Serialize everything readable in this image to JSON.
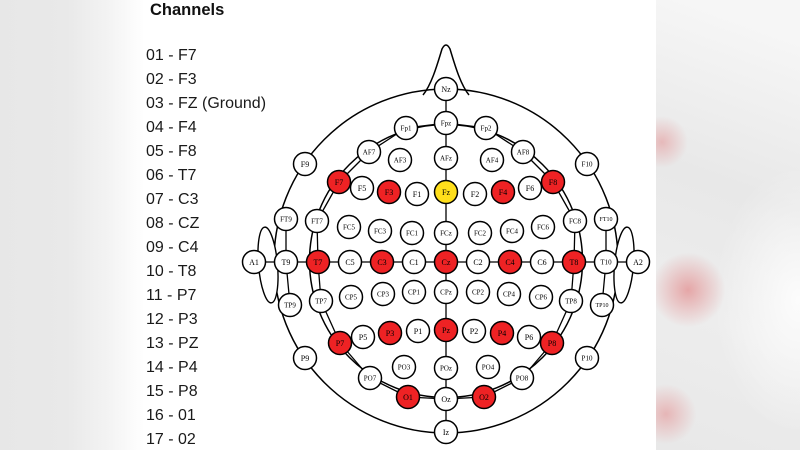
{
  "channels": {
    "title": "Channels",
    "items": [
      "01 - F7",
      "02 - F3",
      "03 - FZ (Ground)",
      "04 - F4",
      "05 - F8",
      "06 - T7",
      "07 - C3",
      "08 - CZ",
      "09 - C4",
      "10 - T8",
      "11 - P7",
      "12 - P3",
      "13 - PZ",
      "14 - P4",
      "15 - P8",
      "16 - 01",
      "17 - 02"
    ]
  },
  "diagram": {
    "colors": {
      "normal": "#ffffff",
      "selected": "#ee2224",
      "ground": "#ffdf1b",
      "outline": "#000000"
    },
    "electrode_format": [
      "id",
      "x",
      "y",
      "state"
    ],
    "electrodes": [
      [
        "Nz",
        446,
        89,
        "normal"
      ],
      [
        "Fp1",
        406,
        128,
        "normal"
      ],
      [
        "Fpz",
        446,
        123,
        "normal"
      ],
      [
        "Fp2",
        486,
        128,
        "normal"
      ],
      [
        "AF7",
        369,
        152,
        "normal"
      ],
      [
        "AF3",
        400,
        160,
        "normal"
      ],
      [
        "AFz",
        446,
        158,
        "normal"
      ],
      [
        "AF4",
        492,
        160,
        "normal"
      ],
      [
        "AF8",
        523,
        152,
        "normal"
      ],
      [
        "F9",
        305,
        164,
        "normal"
      ],
      [
        "F7",
        339,
        182,
        "selected"
      ],
      [
        "F5",
        362,
        188,
        "normal"
      ],
      [
        "F3",
        389,
        192,
        "selected"
      ],
      [
        "F1",
        417,
        194,
        "normal"
      ],
      [
        "Fz",
        446,
        192,
        "ground"
      ],
      [
        "F2",
        475,
        194,
        "normal"
      ],
      [
        "F4",
        503,
        192,
        "selected"
      ],
      [
        "F6",
        530,
        188,
        "normal"
      ],
      [
        "F8",
        553,
        182,
        "selected"
      ],
      [
        "F10",
        587,
        164,
        "normal"
      ],
      [
        "FT9",
        286,
        219,
        "normal"
      ],
      [
        "FT7",
        317,
        221,
        "normal"
      ],
      [
        "FC5",
        349,
        227,
        "normal"
      ],
      [
        "FC3",
        380,
        231,
        "normal"
      ],
      [
        "FC1",
        412,
        233,
        "normal"
      ],
      [
        "FCz",
        446,
        233,
        "normal"
      ],
      [
        "FC2",
        480,
        233,
        "normal"
      ],
      [
        "FC4",
        512,
        231,
        "normal"
      ],
      [
        "FC6",
        543,
        227,
        "normal"
      ],
      [
        "FC8",
        575,
        221,
        "normal"
      ],
      [
        "FT10",
        606,
        219,
        "normal"
      ],
      [
        "A1",
        254,
        262,
        "normal"
      ],
      [
        "T9",
        286,
        262,
        "normal"
      ],
      [
        "T7",
        318,
        262,
        "selected"
      ],
      [
        "C5",
        350,
        262,
        "normal"
      ],
      [
        "C3",
        382,
        262,
        "selected"
      ],
      [
        "C1",
        414,
        262,
        "normal"
      ],
      [
        "Cz",
        446,
        262,
        "selected"
      ],
      [
        "C2",
        478,
        262,
        "normal"
      ],
      [
        "C4",
        510,
        262,
        "selected"
      ],
      [
        "C6",
        542,
        262,
        "normal"
      ],
      [
        "T8",
        574,
        262,
        "selected"
      ],
      [
        "T10",
        606,
        262,
        "normal"
      ],
      [
        "A2",
        638,
        262,
        "normal"
      ],
      [
        "TP9",
        290,
        305,
        "normal"
      ],
      [
        "TP7",
        321,
        301,
        "normal"
      ],
      [
        "CP5",
        351,
        297,
        "normal"
      ],
      [
        "CP3",
        383,
        294,
        "normal"
      ],
      [
        "CP1",
        414,
        292,
        "normal"
      ],
      [
        "CPz",
        446,
        292,
        "normal"
      ],
      [
        "CP2",
        478,
        292,
        "normal"
      ],
      [
        "CP4",
        509,
        294,
        "normal"
      ],
      [
        "CP6",
        541,
        297,
        "normal"
      ],
      [
        "TP8",
        571,
        301,
        "normal"
      ],
      [
        "TP10",
        602,
        305,
        "normal"
      ],
      [
        "P9",
        305,
        358,
        "normal"
      ],
      [
        "P7",
        340,
        343,
        "selected"
      ],
      [
        "P5",
        363,
        337,
        "normal"
      ],
      [
        "P3",
        390,
        333,
        "selected"
      ],
      [
        "P1",
        418,
        331,
        "normal"
      ],
      [
        "Pz",
        446,
        330,
        "selected"
      ],
      [
        "P2",
        474,
        331,
        "normal"
      ],
      [
        "P4",
        502,
        333,
        "selected"
      ],
      [
        "P6",
        529,
        337,
        "normal"
      ],
      [
        "P8",
        552,
        343,
        "selected"
      ],
      [
        "P10",
        587,
        358,
        "normal"
      ],
      [
        "PO7",
        370,
        378,
        "normal"
      ],
      [
        "PO3",
        404,
        367,
        "normal"
      ],
      [
        "POz",
        446,
        368,
        "normal"
      ],
      [
        "PO4",
        488,
        367,
        "normal"
      ],
      [
        "PO8",
        522,
        378,
        "normal"
      ],
      [
        "O1",
        408,
        397,
        "selected"
      ],
      [
        "Oz",
        446,
        399,
        "normal"
      ],
      [
        "O2",
        484,
        397,
        "selected"
      ],
      [
        "Iz",
        446,
        432,
        "normal"
      ]
    ],
    "connections": [
      [
        "Nz",
        "Fpz"
      ],
      [
        "Fpz",
        "AFz"
      ],
      [
        "AFz",
        "Fz"
      ],
      [
        "Fz",
        "FCz"
      ],
      [
        "FCz",
        "Cz"
      ],
      [
        "Cz",
        "CPz"
      ],
      [
        "CPz",
        "Pz"
      ],
      [
        "Pz",
        "POz"
      ],
      [
        "POz",
        "Oz"
      ],
      [
        "Oz",
        "Iz"
      ],
      [
        "A1",
        "T9"
      ],
      [
        "T9",
        "T7"
      ],
      [
        "T7",
        "C5"
      ],
      [
        "C5",
        "C3"
      ],
      [
        "C3",
        "C1"
      ],
      [
        "C1",
        "Cz"
      ],
      [
        "Cz",
        "C2"
      ],
      [
        "C2",
        "C4"
      ],
      [
        "C4",
        "C6"
      ],
      [
        "C6",
        "T8"
      ],
      [
        "T8",
        "T10"
      ],
      [
        "T10",
        "A2"
      ],
      [
        "Fpz",
        "Fp1"
      ],
      [
        "Fp1",
        "AF7"
      ],
      [
        "AF7",
        "F7"
      ],
      [
        "F7",
        "FT7"
      ],
      [
        "FT7",
        "T7"
      ],
      [
        "T7",
        "TP7"
      ],
      [
        "TP7",
        "P7"
      ],
      [
        "P7",
        "PO7"
      ],
      [
        "PO7",
        "O1"
      ],
      [
        "O1",
        "Oz"
      ],
      [
        "Fpz",
        "Fp2"
      ],
      [
        "Fp2",
        "AF8"
      ],
      [
        "AF8",
        "F8"
      ],
      [
        "F8",
        "FC8"
      ],
      [
        "FC8",
        "T8"
      ],
      [
        "T8",
        "TP8"
      ],
      [
        "TP8",
        "P8"
      ],
      [
        "P8",
        "PO8"
      ],
      [
        "PO8",
        "O2"
      ],
      [
        "O2",
        "Oz"
      ],
      [
        "FT9",
        "T9"
      ],
      [
        "T9",
        "TP9"
      ],
      [
        "FT10",
        "T10"
      ],
      [
        "T10",
        "TP10"
      ]
    ]
  }
}
